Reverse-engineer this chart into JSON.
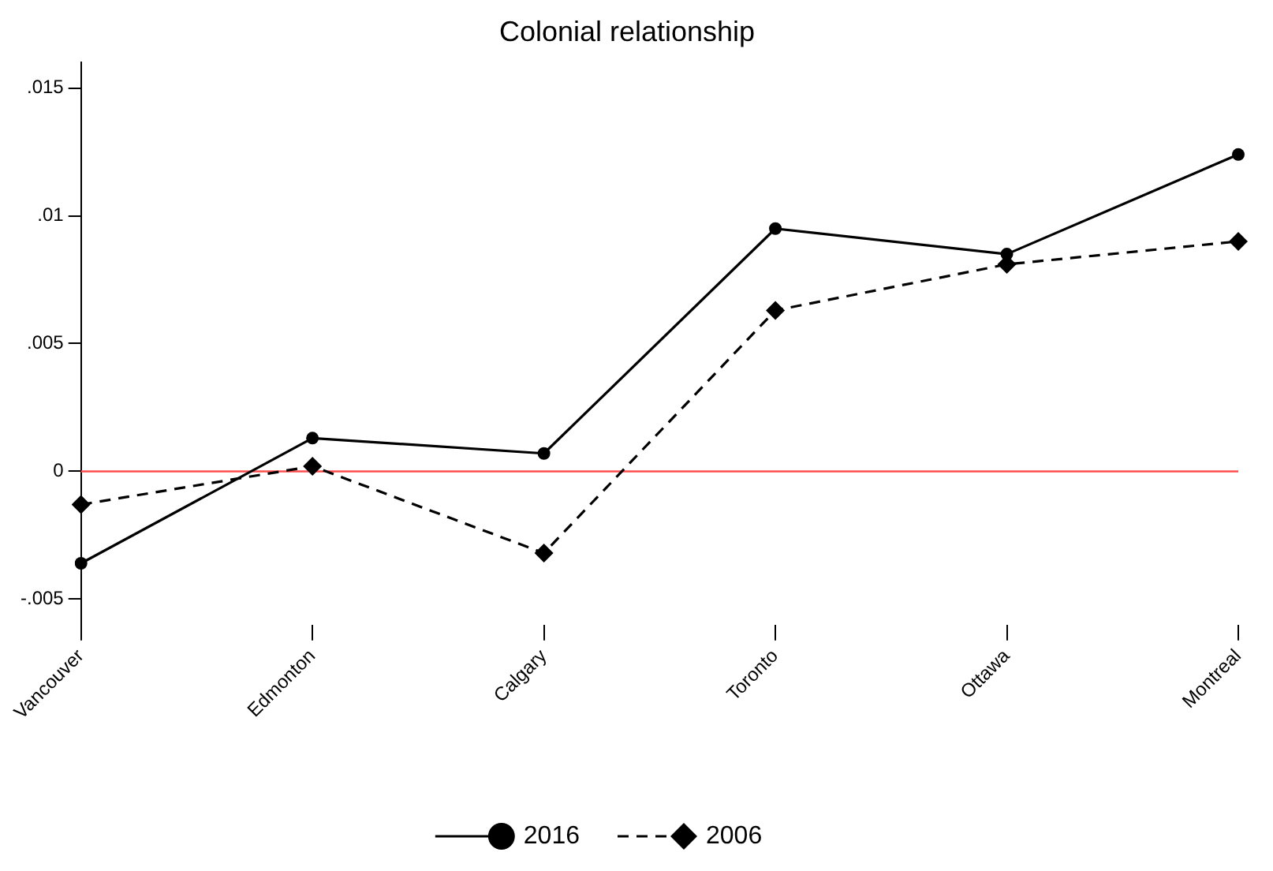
{
  "chart_data": {
    "type": "line",
    "title": "Colonial relationship",
    "categories": [
      "Vancouver",
      "Edmonton",
      "Calgary",
      "Toronto",
      "Ottawa",
      "Montreal"
    ],
    "series": [
      {
        "name": "2016",
        "color": "#000000",
        "marker": "circle",
        "line_style": "solid",
        "values": [
          -0.0036,
          0.0013,
          0.0007,
          0.0095,
          0.0085,
          0.0124
        ]
      },
      {
        "name": "2006",
        "color": "#000000",
        "marker": "diamond",
        "line_style": "dashed",
        "values": [
          -0.0013,
          0.0002,
          -0.0032,
          0.0063,
          0.0081,
          0.009
        ]
      }
    ],
    "ylim": [
      -0.006,
      0.016
    ],
    "yticks": [
      {
        "value": -0.005,
        "label": "-.005"
      },
      0,
      {
        "value": 0.005,
        "label": ".005"
      },
      {
        "value": 0.01,
        "label": ".01"
      },
      {
        "value": 0.015,
        "label": ".015"
      }
    ],
    "ref_lines": [
      {
        "axis": "y",
        "value": 0,
        "color": "#ff4d4d"
      }
    ],
    "grid": false,
    "legend": "bottom"
  }
}
